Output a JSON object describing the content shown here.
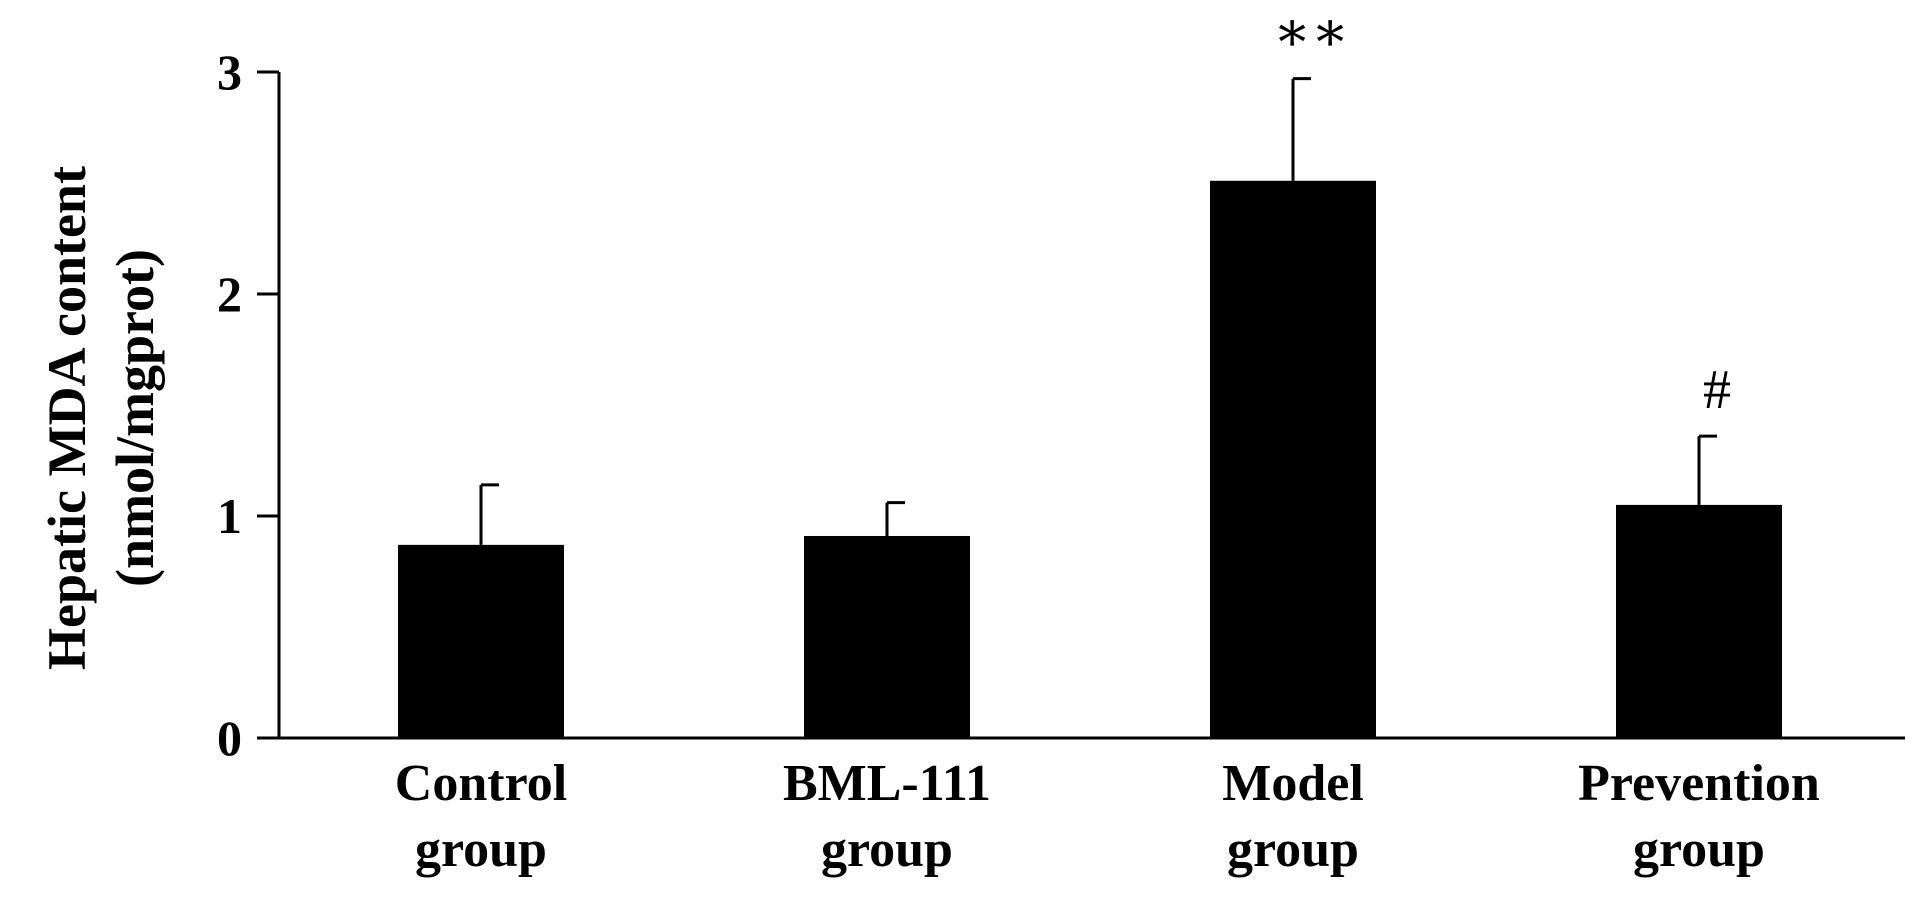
{
  "chart_data": {
    "type": "bar",
    "title": "",
    "ylabel_line1": "Hepatic MDA content",
    "ylabel_line2": "(nmol/mgprot)",
    "xlabel": "",
    "ylim": [
      0,
      3
    ],
    "yticks": [
      0,
      1,
      2,
      3
    ],
    "grid": false,
    "legend": "none",
    "bar_color": "#000000",
    "categories": [
      {
        "line1": "Control",
        "line2": "group"
      },
      {
        "line1": "BML-111",
        "line2": "group"
      },
      {
        "line1": "Model",
        "line2": "group"
      },
      {
        "line1": "Prevention",
        "line2": "group"
      }
    ],
    "values": [
      0.87,
      0.91,
      2.51,
      1.05
    ],
    "errors": [
      0.27,
      0.15,
      0.46,
      0.31
    ],
    "annotations": [
      "",
      "",
      "∗∗",
      "#"
    ]
  }
}
